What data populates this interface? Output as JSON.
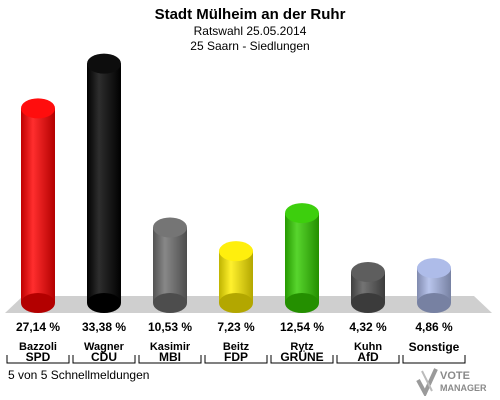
{
  "header": {
    "title": "Stadt Mülheim an der Ruhr",
    "subtitle1": "Ratswahl 25.05.2014",
    "subtitle2": "25 Saarn - Siedlungen"
  },
  "footer": {
    "status": "5 von 5 Schnellmeldungen"
  },
  "logo": {
    "line1": "VOTE",
    "line2": "MANAGER"
  },
  "chart_data": {
    "type": "bar",
    "title": "Stadt Mülheim an der Ruhr",
    "subtitle": "Ratswahl 25.05.2014 / 25 Saarn - Siedlungen",
    "xlabel": "",
    "ylabel": "",
    "ylim": [
      0,
      35
    ],
    "grid": false,
    "legend": "none",
    "categories": [
      "SPD",
      "CDU",
      "MBI",
      "FDP",
      "GRÜNE",
      "AfD",
      "Sonstige"
    ],
    "candidates": [
      "Bazzoli",
      "Wagner",
      "Kasimir",
      "Beitz",
      "Rytz",
      "Kuhn",
      ""
    ],
    "values": [
      27.14,
      33.38,
      10.53,
      7.23,
      12.54,
      4.32,
      4.86
    ],
    "value_labels": [
      "27,14 %",
      "33,38 %",
      "10,53 %",
      "7,23 %",
      "12,54 %",
      "4,32 %",
      "4,86 %"
    ],
    "colors": [
      "#ff0000",
      "#000000",
      "#6e6e6e",
      "#ffee00",
      "#33cc00",
      "#555555",
      "#aab8e8"
    ]
  }
}
